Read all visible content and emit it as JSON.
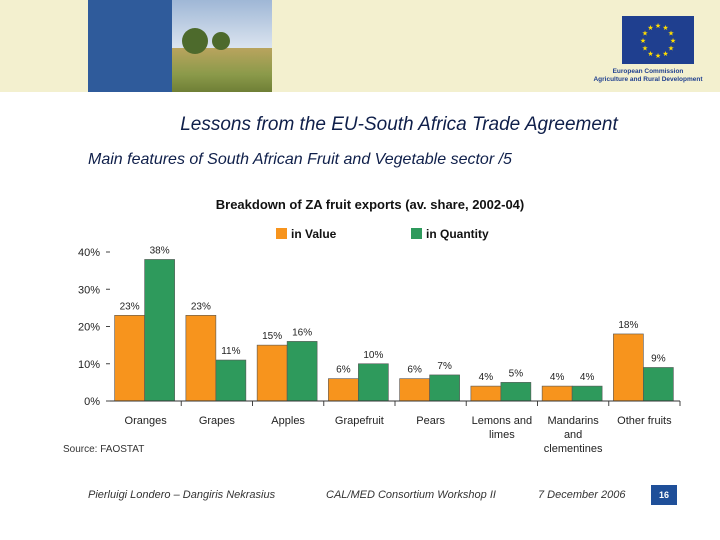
{
  "header": {
    "eu_label_line1": "European Commission",
    "eu_label_line2": "Agriculture and Rural Development"
  },
  "slide": {
    "title": "Lessons from the EU-South Africa Trade Agreement",
    "subtitle": "Main features of South African Fruit and Vegetable sector /5",
    "source": "Source: FAOSTAT"
  },
  "footer": {
    "authors": "Pierluigi Londero – Dangiris Nekrasius",
    "event": "CAL/MED Consortium Workshop II",
    "date": "7 December 2006",
    "page_number": "16"
  },
  "chart_data": {
    "type": "bar",
    "title": "Breakdown of ZA fruit exports (av. share, 2002-04)",
    "categories": [
      [
        "Oranges"
      ],
      [
        "Grapes"
      ],
      [
        "Apples"
      ],
      [
        "Grapefruit"
      ],
      [
        "Pears"
      ],
      [
        "Lemons and",
        "limes"
      ],
      [
        "Mandarins",
        "and",
        "clementines"
      ],
      [
        "Other fruits"
      ]
    ],
    "series": [
      {
        "name": "in Value",
        "color": "#f7941d",
        "values": [
          23,
          23,
          15,
          6,
          6,
          4,
          4,
          18
        ],
        "labels": [
          "23%",
          "23%",
          "15%",
          "6%",
          "6%",
          "4%",
          "4%",
          "18%"
        ]
      },
      {
        "name": "in Quantity",
        "color": "#2e9a5c",
        "values": [
          38,
          11,
          16,
          10,
          7,
          5,
          4,
          9
        ],
        "labels": [
          "38%",
          "11%",
          "16%",
          "10%",
          "7%",
          "5%",
          "4%",
          "9%"
        ]
      }
    ],
    "yticks": [
      "0%",
      "10%",
      "20%",
      "30%",
      "40%"
    ],
    "ylim": [
      0,
      40
    ],
    "legend_position": "top-center",
    "grid": false
  }
}
